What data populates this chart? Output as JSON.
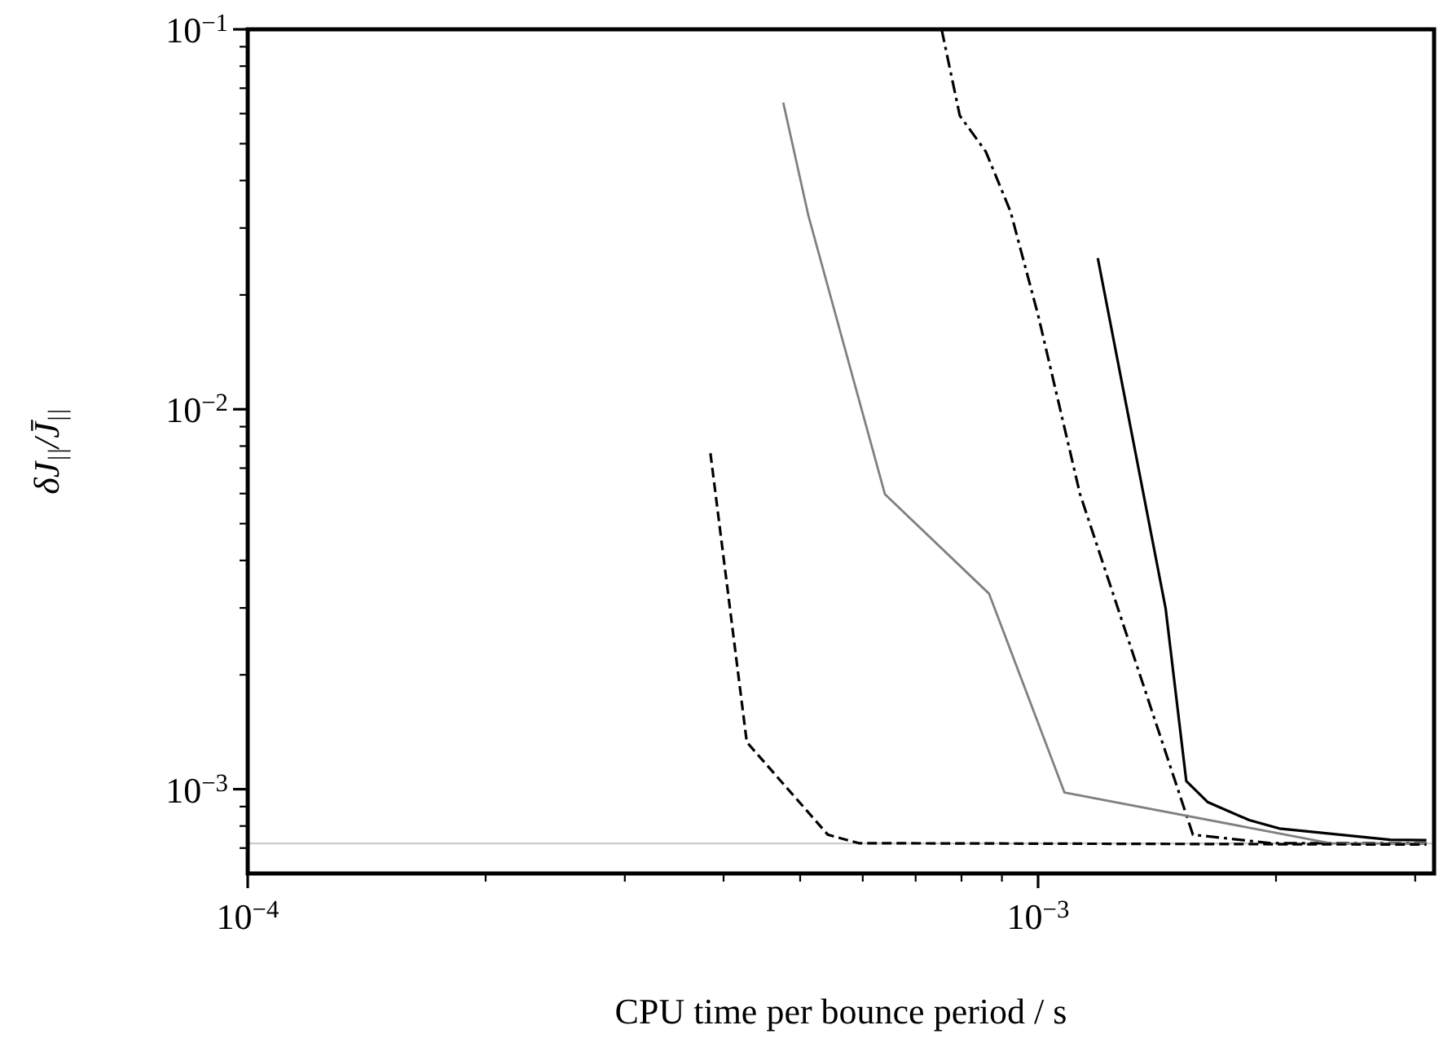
{
  "chart_data": {
    "type": "line",
    "xlabel": "CPU time per bounce period / s",
    "ylabel": "δJ$_{||}$/J̄$_{||}$",
    "log": "xy",
    "grid": false,
    "marker": "none",
    "xlim": [
      0.0001,
      0.00317
    ],
    "ylim": [
      0.0006,
      0.1
    ],
    "xticks": [
      {
        "value": 0.0001,
        "label": "10$^{−4}$"
      },
      {
        "value": 0.0002,
        "label": null
      },
      {
        "value": 0.0003,
        "label": null
      },
      {
        "value": 0.0004,
        "label": null
      },
      {
        "value": 0.0005,
        "label": null
      },
      {
        "value": 0.0006,
        "label": null
      },
      {
        "value": 0.0007,
        "label": null
      },
      {
        "value": 0.0008,
        "label": null
      },
      {
        "value": 0.0009,
        "label": null
      },
      {
        "value": 0.001,
        "label": "10$^{−3}$"
      },
      {
        "value": 0.002,
        "label": null
      },
      {
        "value": 0.003,
        "label": null
      }
    ],
    "yticks": [
      {
        "value": 0.0007,
        "label": null
      },
      {
        "value": 0.0008,
        "label": null
      },
      {
        "value": 0.0009,
        "label": null
      },
      {
        "value": 0.001,
        "label": "10$^{−3}$"
      },
      {
        "value": 0.002,
        "label": null
      },
      {
        "value": 0.003,
        "label": null
      },
      {
        "value": 0.004,
        "label": null
      },
      {
        "value": 0.005,
        "label": null
      },
      {
        "value": 0.006,
        "label": null
      },
      {
        "value": 0.007,
        "label": null
      },
      {
        "value": 0.008,
        "label": null
      },
      {
        "value": 0.009,
        "label": null
      },
      {
        "value": 0.01,
        "label": "10$^{−2}$"
      },
      {
        "value": 0.02,
        "label": null
      },
      {
        "value": 0.03,
        "label": null
      },
      {
        "value": 0.04,
        "label": null
      },
      {
        "value": 0.05,
        "label": null
      },
      {
        "value": 0.06,
        "label": null
      },
      {
        "value": 0.07,
        "label": null
      },
      {
        "value": 0.08,
        "label": null
      },
      {
        "value": 0.09,
        "label": null
      },
      {
        "value": 0.1,
        "label": "10$^{−1}$"
      }
    ],
    "ref_lines": [
      {
        "axis": "y",
        "value": 0.00072,
        "color": "#cccccc"
      }
    ],
    "series": [
      {
        "color": "#000000",
        "line_style": "solid",
        "x": [
          0.00119,
          0.00145,
          0.00154,
          0.00164,
          0.00185,
          0.00202,
          0.00279,
          0.0031
        ],
        "values": [
          0.025,
          0.00299,
          0.00105,
          0.000924,
          0.000829,
          0.000788,
          0.000736,
          0.000734
        ]
      },
      {
        "color": "#000000",
        "line_style": "dashdot",
        "x": [
          0.000755,
          0.000796,
          0.000859,
          0.000923,
          0.001,
          0.00113,
          0.00157,
          0.00197,
          0.0031
        ],
        "values": [
          0.1,
          0.0593,
          0.0476,
          0.0331,
          0.0177,
          0.00598,
          0.000759,
          0.000721,
          0.000721
        ]
      },
      {
        "color": "#808080",
        "line_style": "solid",
        "x": [
          0.000476,
          0.000512,
          0.00064,
          0.000867,
          0.00108,
          0.00235,
          0.0031
        ],
        "values": [
          0.0641,
          0.0324,
          0.00598,
          0.00327,
          0.00098,
          0.00072,
          0.00072
        ]
      },
      {
        "color": "#000000",
        "line_style": "dashed",
        "x": [
          0.000385,
          0.000428,
          0.000542,
          0.000593,
          0.0031
        ],
        "values": [
          0.00766,
          0.00133,
          0.000759,
          0.000721,
          0.000715
        ]
      }
    ]
  }
}
